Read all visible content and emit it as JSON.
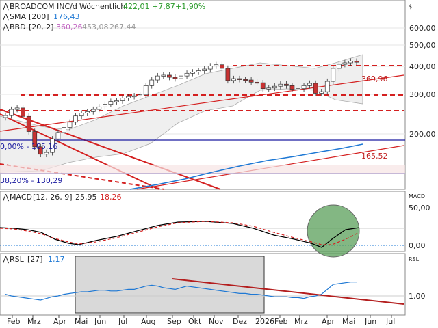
{
  "header": {
    "title": "BROADCOM INC/d",
    "period": "Wöchentlich",
    "price": "422,01",
    "change": "+7,87",
    "change_pct": "+1,90%",
    "currency": "$"
  },
  "indicators": {
    "sma": {
      "label": "SMA",
      "params": "[200]",
      "value": "176,43"
    },
    "bbd": {
      "label": "BBD",
      "params": "[20, 2]",
      "upper": "360,26",
      "mid": "453,08",
      "lower": "267,44"
    }
  },
  "price_labels": {
    "l1": "369,96",
    "l2": "165,52"
  },
  "fib": {
    "f0": "0,00% - 185,16",
    "f382": "38,20% - 130,29"
  },
  "macd": {
    "label": "MACD",
    "params": "[12, 26, 9]",
    "value": "25,95",
    "signal": "18,26",
    "axis_title": "MACD",
    "ticks": [
      "50,00",
      "0,00"
    ]
  },
  "rsl": {
    "label": "RSL",
    "params": "[27]",
    "value": "1,17",
    "axis_title": "RSL",
    "tick": "1,00"
  },
  "price_axis": [
    "600,00",
    "500,00",
    "400,00",
    "300,00",
    "200,00"
  ],
  "months": [
    "Feb",
    "Mrz",
    "Apr",
    "Mai",
    "Jun",
    "Jul",
    "Aug",
    "Sep",
    "Okt",
    "Nov",
    "Dez",
    "2026",
    "Feb",
    "Mrz",
    "Apr",
    "Mai",
    "Jun",
    "Jul"
  ],
  "colors": {
    "up": "#ffffff",
    "down": "#c83232",
    "trend": "#d42020",
    "sma": "#1e78d4",
    "macd": "#000000",
    "signal": "#d42020",
    "highlight": "#5aa05a"
  },
  "chart_data": {
    "type": "candlestick",
    "approx_weekly_close": [
      242,
      258,
      262,
      240,
      205,
      175,
      162,
      165,
      190,
      203,
      214,
      226,
      241,
      248,
      252,
      258,
      265,
      272,
      280,
      282,
      290,
      295,
      297,
      300,
      330,
      350,
      365,
      368,
      360,
      355,
      365,
      375,
      380,
      385,
      392,
      405,
      410,
      395,
      348,
      355,
      352,
      350,
      342,
      340,
      320,
      322,
      328,
      335,
      330,
      318,
      320,
      330,
      338,
      305,
      310,
      345,
      395,
      412,
      418,
      425,
      422
    ],
    "approx_rsl": [
      1.02,
      1.0,
      0.99,
      0.98,
      0.97,
      0.96,
      0.95,
      0.97,
      0.99,
      1.0,
      1.02,
      1.03,
      1.04,
      1.05,
      1.05,
      1.06,
      1.07,
      1.07,
      1.06,
      1.06,
      1.07,
      1.08,
      1.08,
      1.1,
      1.12,
      1.13,
      1.12,
      1.1,
      1.09,
      1.08,
      1.1,
      1.12,
      1.11,
      1.1,
      1.09,
      1.08,
      1.07,
      1.06,
      1.05,
      1.04,
      1.03,
      1.03,
      1.02,
      1.02,
      1.01,
      1.0,
      0.99,
      0.99,
      0.99,
      0.98,
      0.98,
      0.97,
      0.99,
      1.0,
      1.02,
      1.08,
      1.14,
      1.15,
      1.16,
      1.17,
      1.17
    ]
  }
}
